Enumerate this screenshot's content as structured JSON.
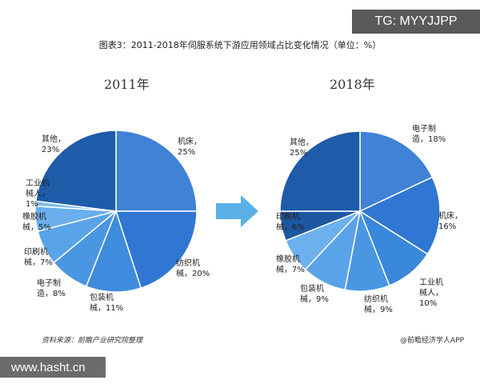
{
  "watermark": "TG: MYYJJPP",
  "title": "图表3：2011-2018年伺服系统下游应用领域占比变化情况（单位：%）",
  "source": "资料来源：前瞻产业研究院整理",
  "brand": "@前瞻经济学人APP",
  "site": "www.hasht.cn",
  "chart_data": [
    {
      "type": "pie",
      "title": "2011年",
      "unit": "%",
      "slices": [
        {
          "name": "机床",
          "value": 25,
          "color": "#3f82d6",
          "label_lines": [
            "机床，",
            "25%"
          ]
        },
        {
          "name": "纺织机械",
          "value": 20,
          "color": "#2f77d2",
          "label_lines": [
            "纺织机",
            "械，20%"
          ]
        },
        {
          "name": "包装机械",
          "value": 11,
          "color": "#3f8bdd",
          "label_lines": [
            "包装机",
            "械，11%"
          ]
        },
        {
          "name": "电子制造",
          "value": 8,
          "color": "#4a96e3",
          "label_lines": [
            "电子制",
            "造，8%"
          ]
        },
        {
          "name": "印刷机械",
          "value": 7,
          "color": "#59a3e9",
          "label_lines": [
            "印刷机",
            "械，7%"
          ]
        },
        {
          "name": "橡胶机械",
          "value": 5,
          "color": "#6aaeed",
          "label_lines": [
            "橡胶机",
            "械，5%"
          ]
        },
        {
          "name": "工业机械人",
          "value": 1,
          "color": "#7dbaf0",
          "label_lines": [
            "工业机",
            "械人，",
            "1%"
          ]
        },
        {
          "name": "其他",
          "value": 23,
          "color": "#1e5ba8",
          "label_lines": [
            "其他，",
            "23%"
          ]
        }
      ]
    },
    {
      "type": "pie",
      "title": "2018年",
      "unit": "%",
      "slices": [
        {
          "name": "电子制造",
          "value": 18,
          "color": "#3f82d6",
          "label_lines": [
            "电子制",
            "造，18%"
          ]
        },
        {
          "name": "机床",
          "value": 16,
          "color": "#2f77d2",
          "label_lines": [
            "机床，",
            "16%"
          ]
        },
        {
          "name": "工业机械人",
          "value": 10,
          "color": "#3a88dc",
          "label_lines": [
            "工业机",
            "械人，",
            "10%"
          ]
        },
        {
          "name": "纺织机械",
          "value": 9,
          "color": "#4b96e3",
          "label_lines": [
            "纺织机",
            "械，9%"
          ]
        },
        {
          "name": "包装机械",
          "value": 9,
          "color": "#5ba3e9",
          "label_lines": [
            "包装机",
            "械，9%"
          ]
        },
        {
          "name": "橡胶机械",
          "value": 7,
          "color": "#6cb0ee",
          "label_lines": [
            "橡胶机",
            "械，7%"
          ]
        },
        {
          "name": "印刷机械",
          "value": 6,
          "color": "#1d57a2",
          "label_lines": [
            "印刷机",
            "械，6%"
          ]
        },
        {
          "name": "其他",
          "value": 25,
          "color": "#1e5ba8",
          "label_lines": [
            "其他，",
            "25%"
          ]
        }
      ]
    }
  ],
  "arrow_color": "#5ab0e6"
}
